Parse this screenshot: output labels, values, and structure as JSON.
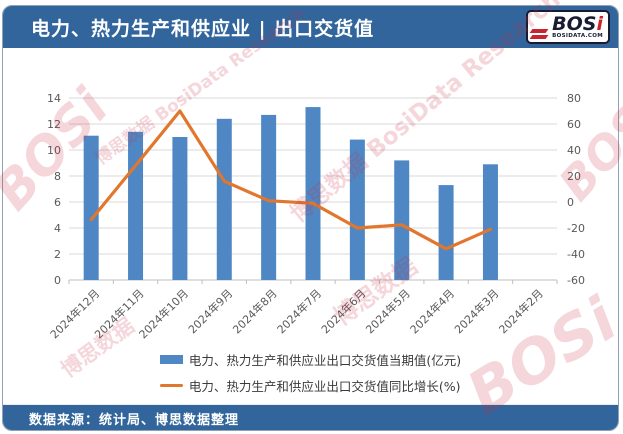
{
  "header": {
    "title": "电力、热力生产和供应业 | 出口交货值",
    "logo": {
      "text_main": "BOS",
      "text_i": "i",
      "site": "BOSIDATA.COM"
    }
  },
  "footer": {
    "source": "数据来源：统计局、博思数据整理"
  },
  "watermarks": {
    "logo": "BOSi",
    "brand_line": "博思数据 BosiData Research",
    "brand_cn": "博思数据"
  },
  "colors": {
    "banner_blue": "#31659B",
    "bar_blue": "#4E87C3",
    "line_orange": "#E2762D",
    "grid": "#D9D9D9",
    "axis_text": "#595959"
  },
  "chart_data": {
    "type": "bar",
    "title": "电力、热力生产和供应业 | 出口交货值",
    "categories": [
      "2024年12月",
      "2024年11月",
      "2024年10月",
      "2024年9月",
      "2024年8月",
      "2024年7月",
      "2024年6月",
      "2024年5月",
      "2024年4月",
      "2024年3月",
      "2024年2月"
    ],
    "series": [
      {
        "name": "电力、热力生产和供应业出口交货值当期值(亿元)",
        "type": "bar",
        "axis": "left",
        "color": "#4E87C3",
        "values": [
          11.1,
          11.4,
          11.0,
          12.4,
          12.7,
          13.3,
          10.8,
          9.2,
          7.3,
          8.9,
          null
        ]
      },
      {
        "name": "电力、热力生产和供应业出口交货值同比增长(%)",
        "type": "line",
        "axis": "right",
        "color": "#E2762D",
        "values": [
          -13.5,
          28,
          70,
          16,
          1,
          -1,
          -20,
          -17.5,
          -36,
          -21,
          null
        ]
      }
    ],
    "left_axis": {
      "min": 0,
      "max": 14,
      "step": 2,
      "ticks": [
        0,
        2,
        4,
        6,
        8,
        10,
        12,
        14
      ]
    },
    "right_axis": {
      "min": -60,
      "max": 80,
      "step": 20,
      "ticks": [
        -60,
        -40,
        -20,
        0,
        20,
        40,
        60,
        80
      ]
    },
    "grid": true,
    "legend_position": "bottom",
    "x_label_rotation": -45
  }
}
